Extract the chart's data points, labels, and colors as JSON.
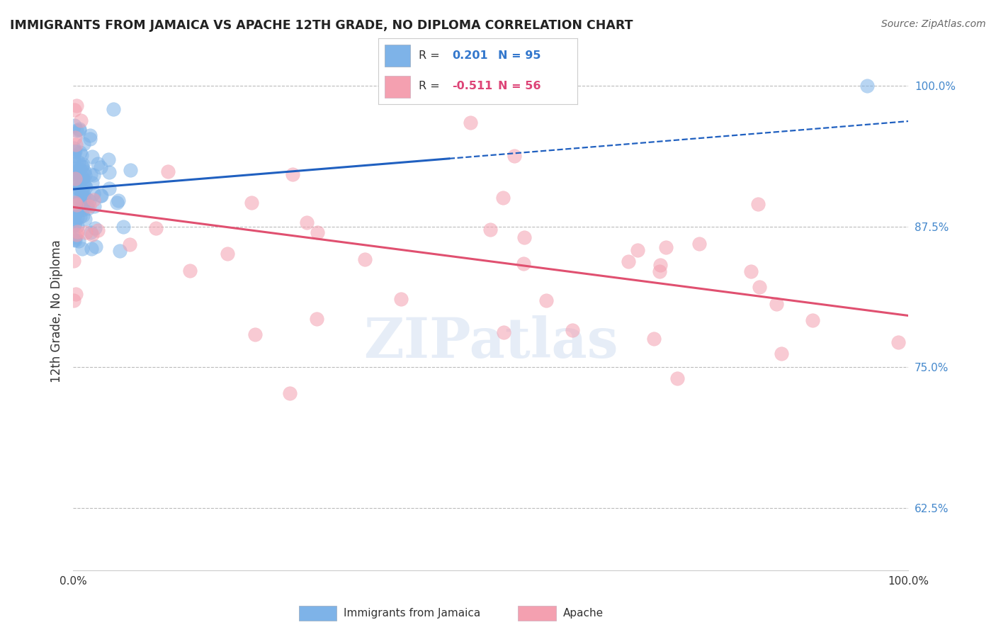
{
  "title": "IMMIGRANTS FROM JAMAICA VS APACHE 12TH GRADE, NO DIPLOMA CORRELATION CHART",
  "source": "Source: ZipAtlas.com",
  "ylabel": "12th Grade, No Diploma",
  "legend_label1": "Immigrants from Jamaica",
  "legend_label2": "Apache",
  "r1": 0.201,
  "n1": 95,
  "r2": -0.511,
  "n2": 56,
  "blue_color": "#7EB3E8",
  "pink_color": "#F4A0B0",
  "line_blue": "#2060C0",
  "line_pink": "#E05070",
  "ytick_labels": [
    "62.5%",
    "75.0%",
    "87.5%",
    "100.0%"
  ],
  "yticks": [
    0.625,
    0.75,
    0.875,
    1.0
  ]
}
